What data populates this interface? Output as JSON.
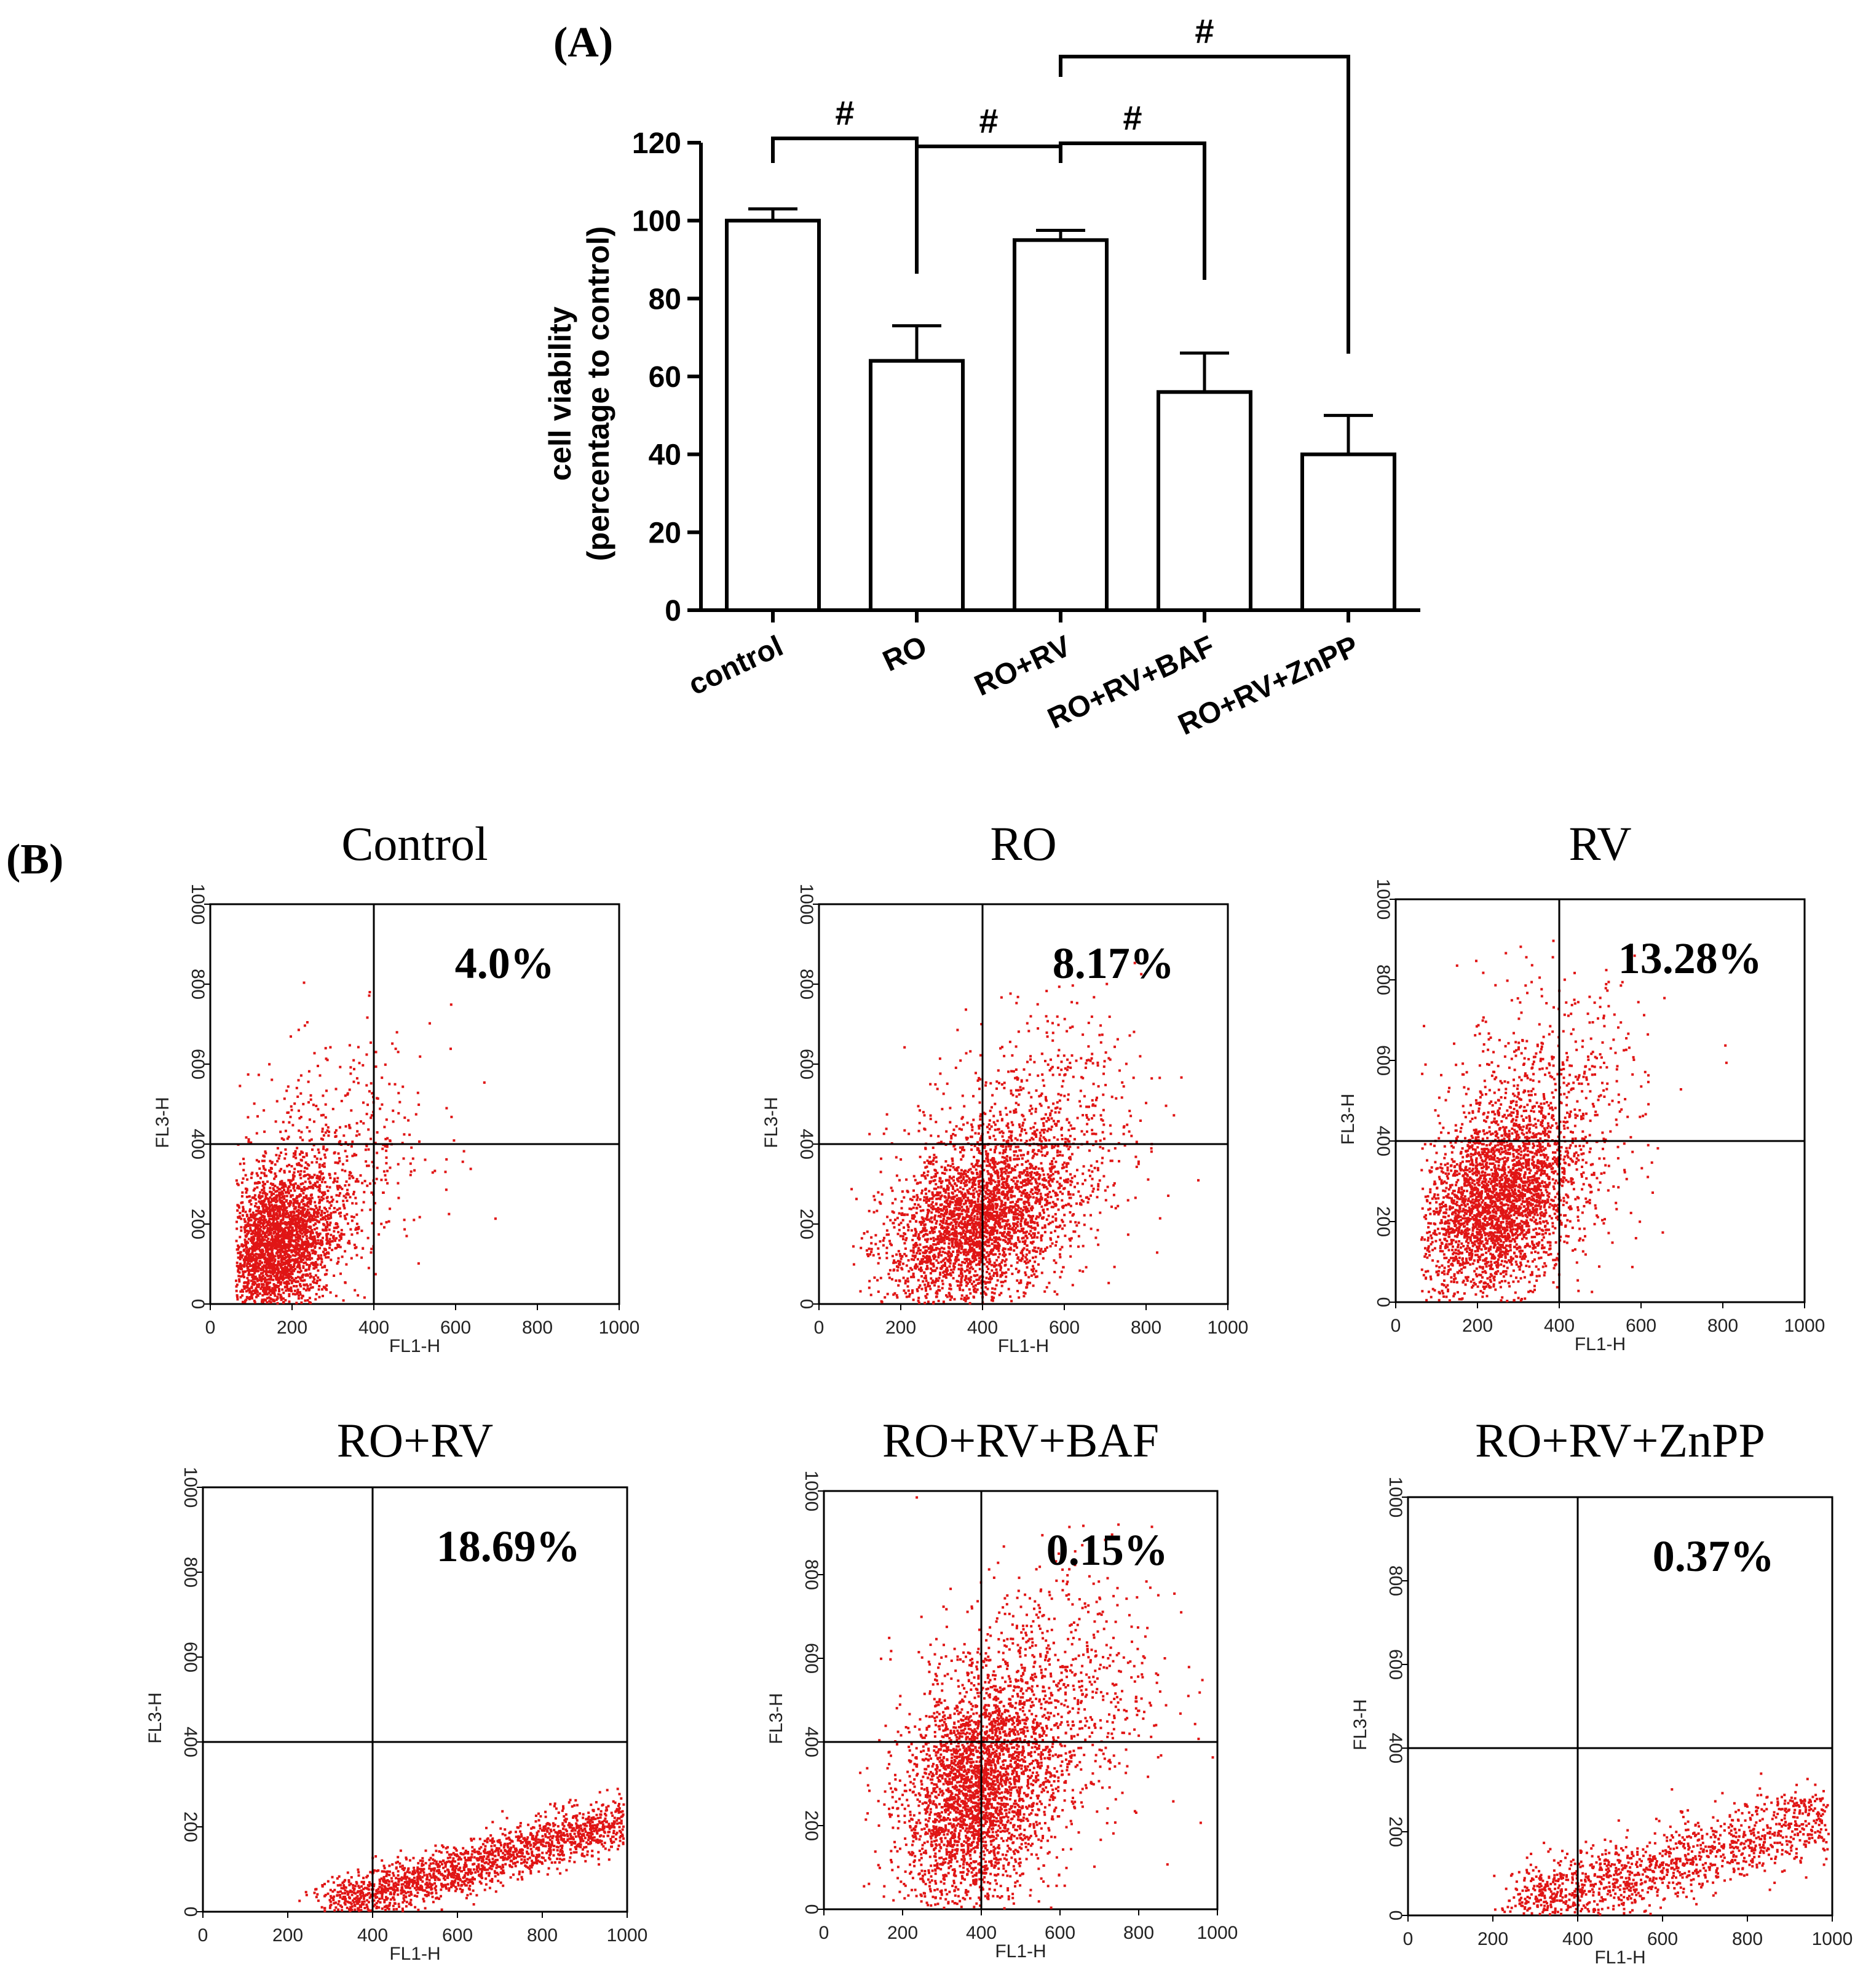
{
  "panel_a_label": "(A)",
  "panel_b_label": "(B)",
  "chart_data": [
    {
      "type": "bar",
      "panel": "A",
      "title": "",
      "ylabel": "cell viability (percentage to control)",
      "ylabel_line1": "cell viability",
      "ylabel_line2": "(percentage to control)",
      "xlabel": "",
      "categories": [
        "control",
        "RO",
        "RO+RV",
        "RO+RV+BAF",
        "RO+RV+ZnPP"
      ],
      "values": [
        100,
        64,
        95,
        56,
        40
      ],
      "errors": [
        3,
        9,
        2.5,
        10,
        10
      ],
      "ylim": [
        0,
        120
      ],
      "yticks": [
        0,
        20,
        40,
        60,
        80,
        100,
        120
      ],
      "significance": [
        {
          "from": "control",
          "to": "RO",
          "label": "#"
        },
        {
          "from": "RO",
          "to": "RO+RV",
          "label": "#"
        },
        {
          "from": "RO+RV",
          "to": "RO+RV+BAF",
          "label": "#"
        },
        {
          "from": "RO+RV",
          "to": "RO+RV+ZnPP",
          "label": "#"
        }
      ]
    },
    {
      "type": "scatter",
      "panel": "B",
      "xlabel": "FL1-H",
      "ylabel": "FL3-H",
      "xlim": [
        0,
        1000
      ],
      "ylim": [
        0,
        1000
      ],
      "xticks": [
        0,
        200,
        400,
        600,
        800,
        1000
      ],
      "yticks": [
        0,
        200,
        400,
        600,
        800,
        1000
      ],
      "quadrant_gate": {
        "x": 400,
        "y": 400
      },
      "plots": [
        {
          "title": "Control",
          "upper_right_percent": "4.0%",
          "clusters": [
            {
              "cx": 160,
              "cy": 150,
              "sx": 70,
              "sy": 90,
              "n": 2600
            },
            {
              "cx": 280,
              "cy": 330,
              "sx": 130,
              "sy": 150,
              "n": 600
            }
          ]
        },
        {
          "title": "RO",
          "upper_right_percent": "8.17%",
          "clusters": [
            {
              "cx": 380,
              "cy": 200,
              "sx": 110,
              "sy": 100,
              "n": 2600
            },
            {
              "cx": 500,
              "cy": 380,
              "sx": 140,
              "sy": 160,
              "n": 900
            }
          ]
        },
        {
          "title": "RV",
          "upper_right_percent": "13.28%",
          "clusters": [
            {
              "cx": 240,
              "cy": 240,
              "sx": 90,
              "sy": 110,
              "n": 2600
            },
            {
              "cx": 340,
              "cy": 420,
              "sx": 130,
              "sy": 170,
              "n": 900
            }
          ]
        },
        {
          "title": "RO+RV",
          "upper_right_percent": "18.69%",
          "clusters": [
            {
              "cx": 600,
              "cy": 110,
              "sx": 150,
              "sy": 30,
              "n": 1800
            }
          ],
          "trend": {
            "x0": 300,
            "y0": 20,
            "x1": 1000,
            "y1": 220
          }
        },
        {
          "title": "RO+RV+BAF",
          "upper_right_percent": "0.15%",
          "clusters": [
            {
              "cx": 380,
              "cy": 280,
              "sx": 90,
              "sy": 130,
              "n": 2600
            },
            {
              "cx": 530,
              "cy": 450,
              "sx": 150,
              "sy": 180,
              "n": 1100
            }
          ]
        },
        {
          "title": "RO+RV+ZnPP",
          "upper_right_percent": "0.37%",
          "clusters": [
            {
              "cx": 560,
              "cy": 120,
              "sx": 150,
              "sy": 45,
              "n": 1400
            }
          ],
          "trend": {
            "x0": 250,
            "y0": 20,
            "x1": 1000,
            "y1": 240
          }
        }
      ]
    }
  ],
  "colors": {
    "dot": "#e01515",
    "dot_dense": "#c00000",
    "axis": "#000000",
    "gate": "#000000"
  }
}
